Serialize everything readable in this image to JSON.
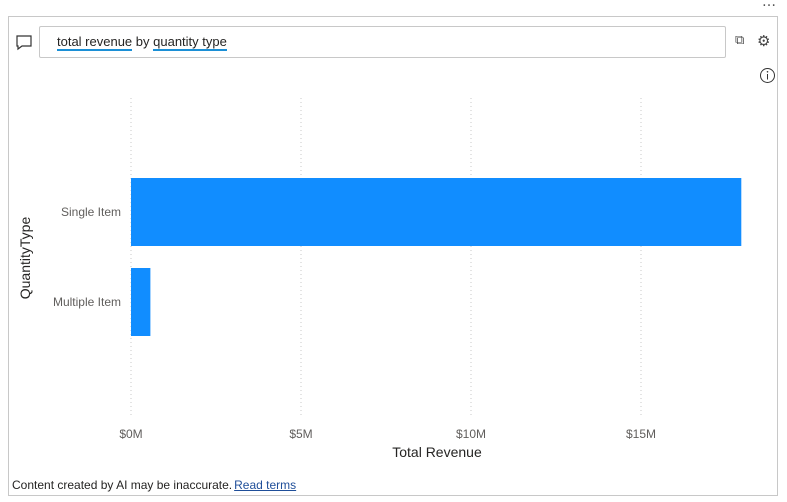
{
  "query": {
    "parts": [
      {
        "text": "total revenue",
        "underlined": true
      },
      {
        "text": " by ",
        "underlined": false
      },
      {
        "text": "quantity type",
        "underlined": true
      }
    ]
  },
  "footer": {
    "disclaimer": "Content created by AI may be inaccurate.",
    "link": "Read terms"
  },
  "colors": {
    "bar": "#118DFF"
  },
  "chart_data": {
    "type": "bar",
    "orientation": "horizontal",
    "categories": [
      "Single Item",
      "Multiple Item"
    ],
    "values": [
      17.95,
      0.57
    ],
    "unit": "$M",
    "xlabel": "Total Revenue",
    "ylabel": "QuantityType",
    "xlim": [
      0,
      18
    ],
    "xticks": [
      0,
      5,
      10,
      15
    ],
    "xtick_labels": [
      "$0M",
      "$5M",
      "$10M",
      "$15M"
    ],
    "grid": true
  }
}
